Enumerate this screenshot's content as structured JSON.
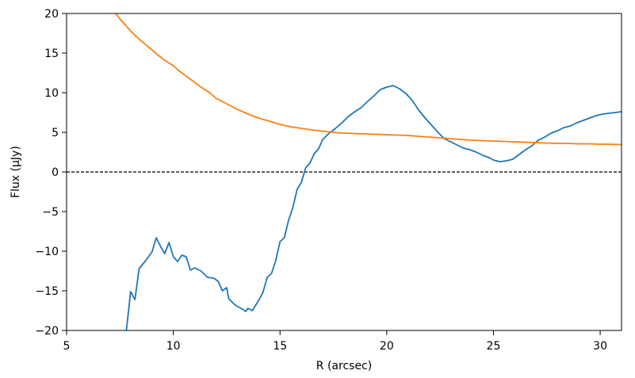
{
  "chart_data": {
    "type": "line",
    "title": "",
    "xlabel": "R (arcsec)",
    "ylabel": "Flux (μJy)",
    "xlim": [
      5,
      31
    ],
    "ylim": [
      -20,
      20
    ],
    "xticks": [
      5,
      10,
      15,
      20,
      25,
      30
    ],
    "yticks": [
      -20,
      -15,
      -10,
      -5,
      0,
      5,
      10,
      15,
      20
    ],
    "grid": false,
    "legend": "none",
    "reference_line": {
      "y": 0,
      "style": "dashed",
      "color": "#000000"
    },
    "series": [
      {
        "color": "#1f77b4",
        "points": [
          [
            7.8,
            -20.0
          ],
          [
            8.0,
            -15.1
          ],
          [
            8.2,
            -16.1
          ],
          [
            8.4,
            -12.2
          ],
          [
            8.7,
            -11.2
          ],
          [
            9.0,
            -10.1
          ],
          [
            9.2,
            -8.3
          ],
          [
            9.4,
            -9.4
          ],
          [
            9.6,
            -10.3
          ],
          [
            9.8,
            -8.9
          ],
          [
            10.0,
            -10.7
          ],
          [
            10.2,
            -11.3
          ],
          [
            10.4,
            -10.5
          ],
          [
            10.6,
            -10.7
          ],
          [
            10.8,
            -12.4
          ],
          [
            11.0,
            -12.1
          ],
          [
            11.3,
            -12.5
          ],
          [
            11.6,
            -13.3
          ],
          [
            11.9,
            -13.4
          ],
          [
            12.1,
            -13.8
          ],
          [
            12.3,
            -15.0
          ],
          [
            12.5,
            -14.6
          ],
          [
            12.6,
            -16.0
          ],
          [
            12.9,
            -16.8
          ],
          [
            13.1,
            -17.1
          ],
          [
            13.4,
            -17.6
          ],
          [
            13.5,
            -17.2
          ],
          [
            13.7,
            -17.5
          ],
          [
            14.0,
            -16.2
          ],
          [
            14.2,
            -15.2
          ],
          [
            14.4,
            -13.3
          ],
          [
            14.6,
            -12.8
          ],
          [
            14.8,
            -11.2
          ],
          [
            15.0,
            -8.8
          ],
          [
            15.2,
            -8.3
          ],
          [
            15.4,
            -6.1
          ],
          [
            15.6,
            -4.5
          ],
          [
            15.8,
            -2.2
          ],
          [
            16.0,
            -1.3
          ],
          [
            16.2,
            0.5
          ],
          [
            16.4,
            1.1
          ],
          [
            16.6,
            2.3
          ],
          [
            16.8,
            2.9
          ],
          [
            17.0,
            4.1
          ],
          [
            17.3,
            4.9
          ],
          [
            17.6,
            5.5
          ],
          [
            17.9,
            6.2
          ],
          [
            18.2,
            7.0
          ],
          [
            18.5,
            7.6
          ],
          [
            18.8,
            8.1
          ],
          [
            19.1,
            8.9
          ],
          [
            19.4,
            9.6
          ],
          [
            19.7,
            10.4
          ],
          [
            20.0,
            10.7
          ],
          [
            20.3,
            10.9
          ],
          [
            20.6,
            10.5
          ],
          [
            20.9,
            9.9
          ],
          [
            21.2,
            9.0
          ],
          [
            21.5,
            7.8
          ],
          [
            21.8,
            6.8
          ],
          [
            22.1,
            5.9
          ],
          [
            22.4,
            5.0
          ],
          [
            22.7,
            4.2
          ],
          [
            23.0,
            3.8
          ],
          [
            23.3,
            3.4
          ],
          [
            23.6,
            3.0
          ],
          [
            23.9,
            2.8
          ],
          [
            24.2,
            2.5
          ],
          [
            24.5,
            2.1
          ],
          [
            24.8,
            1.8
          ],
          [
            25.0,
            1.5
          ],
          [
            25.3,
            1.3
          ],
          [
            25.6,
            1.4
          ],
          [
            25.9,
            1.6
          ],
          [
            26.2,
            2.2
          ],
          [
            26.5,
            2.8
          ],
          [
            26.8,
            3.3
          ],
          [
            27.1,
            4.0
          ],
          [
            27.4,
            4.4
          ],
          [
            27.7,
            4.9
          ],
          [
            28.0,
            5.2
          ],
          [
            28.3,
            5.6
          ],
          [
            28.6,
            5.8
          ],
          [
            28.9,
            6.2
          ],
          [
            29.2,
            6.5
          ],
          [
            29.5,
            6.8
          ],
          [
            29.8,
            7.1
          ],
          [
            30.1,
            7.3
          ],
          [
            30.4,
            7.4
          ],
          [
            30.7,
            7.5
          ],
          [
            31.0,
            7.6
          ]
        ]
      },
      {
        "color": "#ff7f0e",
        "points": [
          [
            7.3,
            20.0
          ],
          [
            7.5,
            19.3
          ],
          [
            7.8,
            18.4
          ],
          [
            8.0,
            17.8
          ],
          [
            8.3,
            17.0
          ],
          [
            8.6,
            16.3
          ],
          [
            9.0,
            15.4
          ],
          [
            9.3,
            14.7
          ],
          [
            9.6,
            14.1
          ],
          [
            10.0,
            13.4
          ],
          [
            10.3,
            12.7
          ],
          [
            10.6,
            12.1
          ],
          [
            11.0,
            11.3
          ],
          [
            11.3,
            10.7
          ],
          [
            11.7,
            10.0
          ],
          [
            12.0,
            9.3
          ],
          [
            12.5,
            8.6
          ],
          [
            13.0,
            7.9
          ],
          [
            13.5,
            7.3
          ],
          [
            14.0,
            6.8
          ],
          [
            14.5,
            6.4
          ],
          [
            15.0,
            6.0
          ],
          [
            15.5,
            5.7
          ],
          [
            16.0,
            5.5
          ],
          [
            16.5,
            5.3
          ],
          [
            17.0,
            5.15
          ],
          [
            17.5,
            5.0
          ],
          [
            18.0,
            4.9
          ],
          [
            18.5,
            4.85
          ],
          [
            19.0,
            4.8
          ],
          [
            19.5,
            4.75
          ],
          [
            20.0,
            4.7
          ],
          [
            20.5,
            4.65
          ],
          [
            21.0,
            4.6
          ],
          [
            21.5,
            4.5
          ],
          [
            22.0,
            4.4
          ],
          [
            22.5,
            4.3
          ],
          [
            23.0,
            4.2
          ],
          [
            23.5,
            4.1
          ],
          [
            24.0,
            4.0
          ],
          [
            24.5,
            3.95
          ],
          [
            25.0,
            3.9
          ],
          [
            25.5,
            3.85
          ],
          [
            26.0,
            3.8
          ],
          [
            26.5,
            3.75
          ],
          [
            27.0,
            3.7
          ],
          [
            27.5,
            3.65
          ],
          [
            28.0,
            3.6
          ],
          [
            28.5,
            3.6
          ],
          [
            29.0,
            3.55
          ],
          [
            29.5,
            3.55
          ],
          [
            30.0,
            3.5
          ],
          [
            30.5,
            3.5
          ],
          [
            31.0,
            3.45
          ]
        ]
      }
    ]
  }
}
